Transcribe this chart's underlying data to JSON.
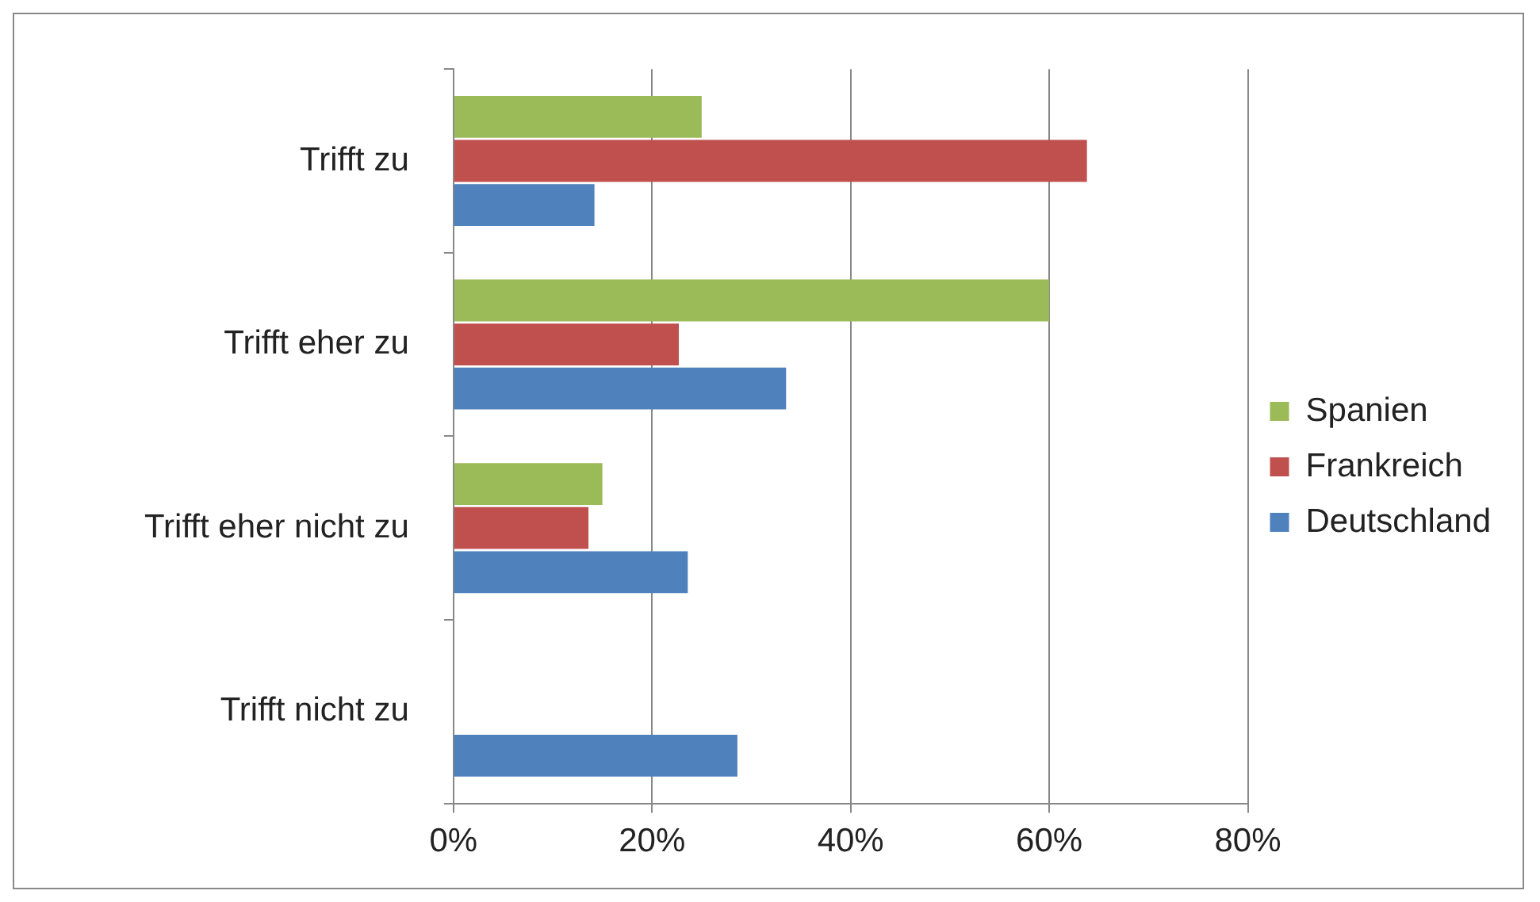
{
  "chart_data": {
    "type": "bar",
    "orientation": "horizontal",
    "categories": [
      "Trifft zu",
      "Trifft eher zu",
      "Trifft eher nicht zu",
      "Trifft nicht zu"
    ],
    "series": [
      {
        "name": "Spanien",
        "color": "#9bbb59",
        "values": [
          25,
          60,
          15,
          0
        ]
      },
      {
        "name": "Frankreich",
        "color": "#c0504d",
        "values": [
          63.8,
          22.7,
          13.6,
          0
        ]
      },
      {
        "name": "Deutschland",
        "color": "#4f81bd",
        "values": [
          14.2,
          33.5,
          23.6,
          28.6
        ]
      }
    ],
    "xlim": [
      0,
      80
    ],
    "xticks": [
      {
        "value": 0,
        "label": "0%"
      },
      {
        "value": 20,
        "label": "20%"
      },
      {
        "value": 40,
        "label": "40%"
      },
      {
        "value": 60,
        "label": "60%"
      },
      {
        "value": 80,
        "label": "80%"
      }
    ],
    "grid": "x",
    "legend": "right"
  }
}
